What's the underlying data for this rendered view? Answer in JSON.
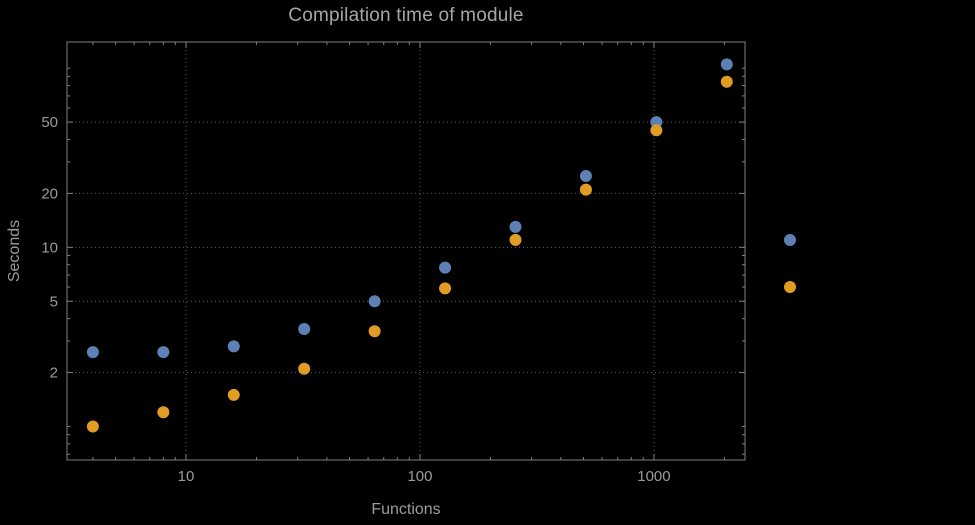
{
  "chart_data": {
    "type": "scatter",
    "title": "Compilation time of module",
    "xlabel": "Functions",
    "ylabel": "Seconds",
    "x_scale": "log",
    "y_scale": "log",
    "xlim": [
      3.1,
      2450
    ],
    "ylim": [
      0.65,
      140
    ],
    "x": [
      4,
      8,
      16,
      32,
      64,
      128,
      256,
      512,
      1024,
      2048
    ],
    "series": [
      {
        "name": "blue-series",
        "color": "#5E81B5",
        "values": [
          2.6,
          2.6,
          2.8,
          3.5,
          5.0,
          7.7,
          13,
          25,
          50,
          105
        ]
      },
      {
        "name": "orange-series",
        "color": "#E19C24",
        "values": [
          1.0,
          1.2,
          1.5,
          2.1,
          3.4,
          5.9,
          11,
          21,
          45,
          84
        ]
      }
    ],
    "x_ticks": [
      {
        "value": 10,
        "label": "10"
      },
      {
        "value": 100,
        "label": "100"
      },
      {
        "value": 1000,
        "label": "1000"
      }
    ],
    "y_ticks": [
      {
        "value": 2,
        "label": "2"
      },
      {
        "value": 5,
        "label": "5"
      },
      {
        "value": 10,
        "label": "10"
      },
      {
        "value": 20,
        "label": "20"
      },
      {
        "value": 50,
        "label": "50"
      }
    ],
    "grid": {
      "on": true,
      "style": "dotted",
      "at": "labeled-ticks"
    },
    "legend": {
      "position": "outside-right",
      "markers": [
        {
          "series": "blue-series",
          "color": "#5E81B5",
          "label": ""
        },
        {
          "series": "orange-series",
          "color": "#E19C24",
          "label": ""
        }
      ]
    },
    "colors": {
      "background": "#000000",
      "frame": "#808080",
      "grid": "#5e5e5e",
      "text": "#9b9b9b",
      "title": "#a6a6a6"
    },
    "marker_size_px": 12
  }
}
